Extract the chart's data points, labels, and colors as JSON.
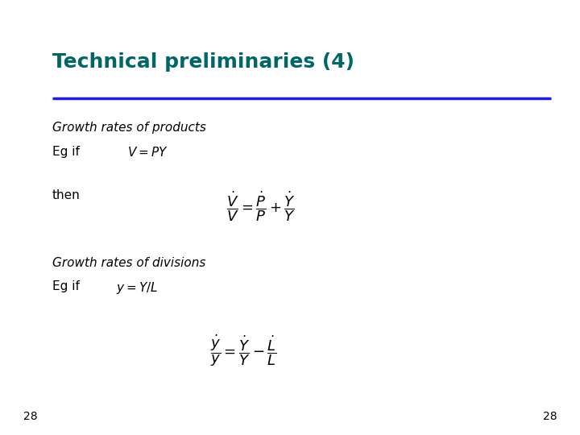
{
  "title": "Technical preliminaries (4)",
  "title_color": "#006666",
  "title_fontsize": 18,
  "line_color": "#1a1aff",
  "bg_color": "#ffffff",
  "section1_heading": "Growth rates of products",
  "section1_eg": "Eg if",
  "section1_formula_inline": "$V = PY$",
  "section1_then": "then",
  "section2_heading": "Growth rates of divisions",
  "section2_eg": "Eg if",
  "section2_formula_inline": "$y = Y/L$",
  "page_number": "28",
  "text_color": "#000000",
  "text_fontsize": 11,
  "math_fontsize": 13
}
